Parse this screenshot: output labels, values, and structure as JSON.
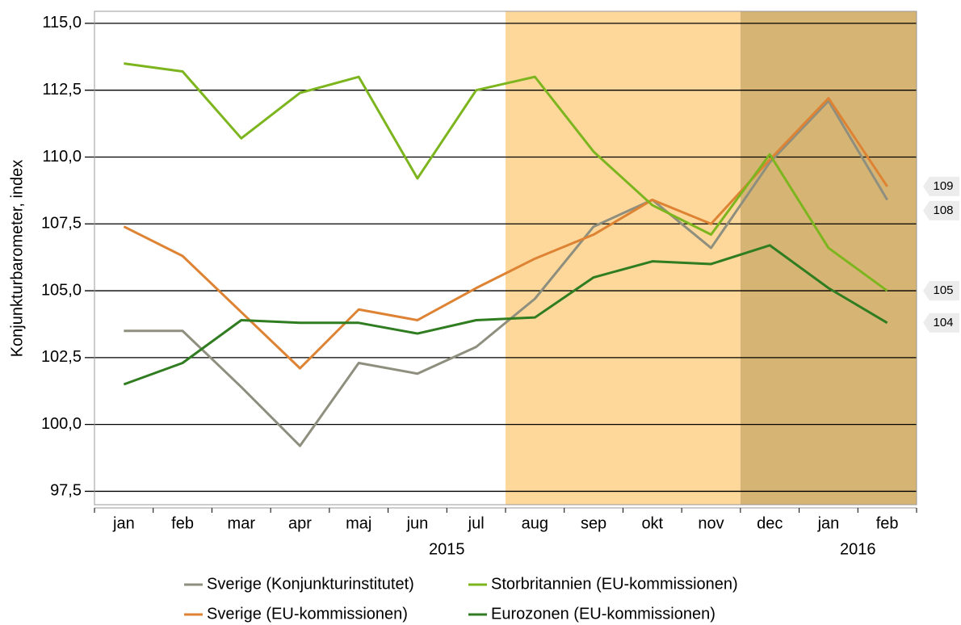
{
  "chart_data": {
    "type": "line",
    "y_axis_label": "Konjunkturbarometer, index",
    "categories": [
      "jan",
      "feb",
      "mar",
      "apr",
      "maj",
      "jun",
      "jul",
      "aug",
      "sep",
      "okt",
      "nov",
      "dec",
      "jan",
      "feb"
    ],
    "year_groups": [
      {
        "label": "2015",
        "start": 0,
        "end": 11
      },
      {
        "label": "2016",
        "start": 12,
        "end": 13
      }
    ],
    "shaded": [
      {
        "start": 7,
        "end": 10,
        "color": "#fdd89a"
      },
      {
        "start": 11,
        "end": 13,
        "color": "#d6b574"
      }
    ],
    "ylim": [
      97,
      115.45
    ],
    "yticks": [
      {
        "value": 97.5,
        "label": "97,5"
      },
      {
        "value": 100,
        "label": "100,0"
      },
      {
        "value": 102.5,
        "label": "102,5"
      },
      {
        "value": 105,
        "label": "105,0"
      },
      {
        "value": 107.5,
        "label": "107,5"
      },
      {
        "value": 110,
        "label": "110,0"
      },
      {
        "value": 112.5,
        "label": "112,5"
      },
      {
        "value": 115,
        "label": "115,0"
      }
    ],
    "grid": true,
    "series": [
      {
        "name": "Sverige (Konjunkturinstitutet)",
        "color": "#8f8f7f",
        "values": [
          103.5,
          103.5,
          101.4,
          99.2,
          102.3,
          101.9,
          102.9,
          104.7,
          107.4,
          108.4,
          106.6,
          109.8,
          112.1,
          108.4
        ],
        "end_label": "108"
      },
      {
        "name": "Sverige (EU-kommissionen)",
        "color": "#dd8333",
        "values": [
          107.4,
          106.3,
          104.2,
          102.1,
          104.3,
          103.9,
          105.1,
          106.2,
          107.1,
          108.4,
          107.5,
          109.9,
          112.2,
          108.9
        ],
        "end_label": "109"
      },
      {
        "name": "Storbritannien (EU-kommissionen)",
        "color": "#7cb51e",
        "values": [
          113.5,
          113.2,
          110.7,
          112.4,
          113.0,
          109.2,
          112.5,
          113.0,
          110.2,
          108.2,
          107.1,
          110.1,
          106.6,
          105.0
        ],
        "end_label": "105"
      },
      {
        "name": "Eurozonen (EU-kommissionen)",
        "color": "#2f7d20",
        "values": [
          101.5,
          102.3,
          103.9,
          103.8,
          103.8,
          103.4,
          103.9,
          104.0,
          105.5,
          106.1,
          106.0,
          106.7,
          105.1,
          103.8
        ],
        "end_label": "104"
      }
    ]
  }
}
